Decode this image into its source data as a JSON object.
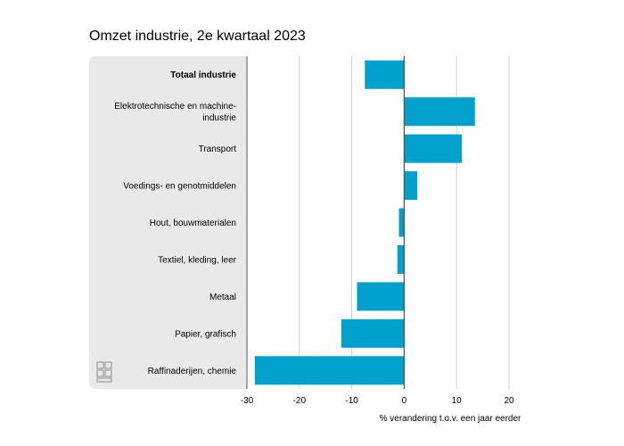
{
  "chart_data": {
    "type": "bar",
    "orientation": "horizontal",
    "title": "Omzet industrie, 2e kwartaal 2023",
    "xlabel": "% verandering t.o.v. een jaar eerder",
    "ylabel": "",
    "categories": [
      "Totaal industrie",
      "Elektrotechnische en machine-industrie",
      "Transport",
      "Voedings- en genotmiddelen",
      "Hout, bouwmaterialen",
      "Textiel, kleding, leer",
      "Metaal",
      "Papier, grafisch",
      "Raffinaderijen, chemie"
    ],
    "category_lines": [
      [
        "Totaal industrie"
      ],
      [
        "Elektrotechnische en machine-",
        "industrie"
      ],
      [
        "Transport"
      ],
      [
        "Voedings- en genotmiddelen"
      ],
      [
        "Hout, bouwmaterialen"
      ],
      [
        "Textiel, kleding, leer"
      ],
      [
        "Metaal"
      ],
      [
        "Papier, grafisch"
      ],
      [
        "Raffinaderijen, chemie"
      ]
    ],
    "emphasized_category": "Totaal industrie",
    "values": [
      -7.5,
      13.5,
      11,
      2.5,
      -1,
      -1.3,
      -9,
      -12,
      -28.5
    ],
    "xlim": [
      -30,
      20
    ],
    "xticks": [
      -30,
      -20,
      -10,
      0,
      10,
      20
    ],
    "xtick_labels": [
      "-30",
      "-20",
      "-10",
      "0",
      "10",
      "20"
    ],
    "grid": true,
    "legend": "none",
    "colors": {
      "bar": "#00a1cd",
      "label_panel": "#e9e9e9",
      "grid": "#d0d0d0",
      "zero_line": "#555555",
      "logo": "#a6a6a6"
    }
  },
  "logo": {
    "icon": "cbs-logo-icon"
  }
}
